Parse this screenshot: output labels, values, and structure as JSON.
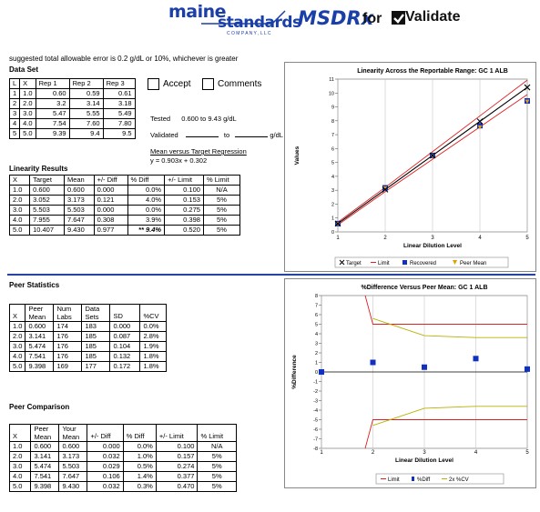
{
  "header": {
    "logo_maine": "maine",
    "logo_standards": "standards",
    "logo_company": "C O M P A N Y , L L C",
    "logo_msdrx": "MSDRx",
    "logo_for": "for",
    "logo_validate": "Validate"
  },
  "note": "suggested total allowable error is 0.2 g/dL or 10%, whichever is greater",
  "dataset": {
    "title": "Data Set",
    "headers": [
      "L",
      "X",
      "Rep 1",
      "Rep 2",
      "Rep 3"
    ],
    "rows": [
      [
        "1",
        "1.0",
        "0.60",
        "0.59",
        "0.61"
      ],
      [
        "2",
        "2.0",
        "3.2",
        "3.14",
        "3.18"
      ],
      [
        "3",
        "3.0",
        "5.47",
        "5.55",
        "5.49"
      ],
      [
        "4",
        "4.0",
        "7.54",
        "7.60",
        "7.80"
      ],
      [
        "5",
        "5.0",
        "9.39",
        "9.4",
        "9.5"
      ]
    ]
  },
  "accept_label": "Accept",
  "comments_label": "Comments",
  "tested_label": "Tested",
  "tested_value": "0.600 to 9.43 g/dL",
  "validated_label": "Validated",
  "validated_to": "to",
  "validated_unit": "g/dL",
  "regression_title": "Mean versus Target Regression",
  "regression_eq": "y = 0.903x + 0.302",
  "linearity": {
    "title": "Linearity Results",
    "headers": [
      "X",
      "Target",
      "Mean",
      "+/- Diff",
      "% Diff",
      "+/- Limit",
      "% Limit"
    ],
    "rows": [
      [
        "1.0",
        "0.600",
        "0.600",
        "0.000",
        "0.0%",
        "0.100",
        "N/A"
      ],
      [
        "2.0",
        "3.052",
        "3.173",
        "0.121",
        "4.0%",
        "0.153",
        "5%"
      ],
      [
        "3.0",
        "5.503",
        "5.503",
        "0.000",
        "0.0%",
        "0.275",
        "5%"
      ],
      [
        "4.0",
        "7.955",
        "7.647",
        "0.308",
        "3.9%",
        "0.398",
        "5%"
      ],
      [
        "5.0",
        "10.407",
        "9.430",
        "0.977",
        "** 9.4%",
        "0.520",
        "5%"
      ]
    ]
  },
  "peer_stats": {
    "title": "Peer Statistics",
    "headers": [
      "X",
      "Peer Mean",
      "Num Labs",
      "Data Sets",
      "SD",
      "%CV"
    ],
    "rows": [
      [
        "1.0",
        "0.600",
        "174",
        "183",
        "0.000",
        "0.0%"
      ],
      [
        "2.0",
        "3.141",
        "176",
        "185",
        "0.087",
        "2.8%"
      ],
      [
        "3.0",
        "5.474",
        "176",
        "185",
        "0.104",
        "1.9%"
      ],
      [
        "4.0",
        "7.541",
        "176",
        "185",
        "0.132",
        "1.8%"
      ],
      [
        "5.0",
        "9.398",
        "169",
        "177",
        "0.172",
        "1.8%"
      ]
    ]
  },
  "peer_comp": {
    "title": "Peer Comparison",
    "headers": [
      "X",
      "Peer Mean",
      "Your Mean",
      "+/- Diff",
      "% Diff",
      "+/- Limit",
      "% Limit"
    ],
    "rows": [
      [
        "1.0",
        "0.600",
        "0.600",
        "0.000",
        "0.0%",
        "0.100",
        "N/A"
      ],
      [
        "2.0",
        "3.141",
        "3.173",
        "0.032",
        "1.0%",
        "0.157",
        "5%"
      ],
      [
        "3.0",
        "5.474",
        "5.503",
        "0.029",
        "0.5%",
        "0.274",
        "5%"
      ],
      [
        "4.0",
        "7.541",
        "7.647",
        "0.106",
        "1.4%",
        "0.377",
        "5%"
      ],
      [
        "5.0",
        "9.398",
        "9.430",
        "0.032",
        "0.3%",
        "0.470",
        "5%"
      ]
    ]
  },
  "colors": {
    "divider": "#1a3fd1",
    "target": "#000000",
    "limit": "#e02020",
    "recovered": "#1030c0",
    "peer": "#e0a000",
    "cv": "#b8b000"
  },
  "chart_data": [
    {
      "type": "line",
      "title": "Linearity Across the Reportable Range:  GC 1 ALB",
      "xlabel": "Linear Dilution Level",
      "ylabel": "Values",
      "xlim": [
        1,
        5
      ],
      "ylim": [
        0,
        11
      ],
      "x": [
        1,
        2,
        3,
        4,
        5
      ],
      "series": [
        {
          "name": "Target",
          "values": [
            0.6,
            3.052,
            5.503,
            7.955,
            10.407
          ]
        },
        {
          "name": "Limit",
          "values": [
            0.7,
            3.205,
            5.778,
            8.353,
            10.927
          ]
        },
        {
          "name": "Limit",
          "values": [
            0.5,
            2.899,
            5.228,
            7.557,
            9.887
          ]
        },
        {
          "name": "Recovered",
          "values": [
            0.6,
            3.173,
            5.503,
            7.647,
            9.43
          ]
        },
        {
          "name": "Peer Mean",
          "values": [
            0.6,
            3.141,
            5.474,
            7.541,
            9.398
          ]
        }
      ],
      "legend": [
        "Target",
        "Limit",
        "Recovered",
        "Peer Mean"
      ]
    },
    {
      "type": "line",
      "title": "%Difference Versus Peer Mean:  GC 1 ALB",
      "xlabel": "Linear Dilution Level",
      "ylabel": "%Difference",
      "xlim": [
        1,
        5
      ],
      "ylim": [
        -8,
        8
      ],
      "x": [
        1,
        2,
        3,
        4,
        5
      ],
      "series": [
        {
          "name": "Limit",
          "values": [
            null,
            5,
            5,
            5,
            5
          ]
        },
        {
          "name": "Limit",
          "values": [
            null,
            -5,
            -5,
            -5,
            -5
          ]
        },
        {
          "name": "%Diff",
          "values": [
            0.0,
            1.0,
            0.5,
            1.4,
            0.3
          ]
        },
        {
          "name": "2x %CV",
          "values": [
            null,
            5.6,
            3.8,
            3.6,
            3.6
          ]
        },
        {
          "name": "2x %CV",
          "values": [
            null,
            -5.6,
            -3.8,
            -3.6,
            -3.6
          ]
        }
      ],
      "legend": [
        "Limit",
        "%Diff",
        "2x %CV"
      ]
    }
  ]
}
